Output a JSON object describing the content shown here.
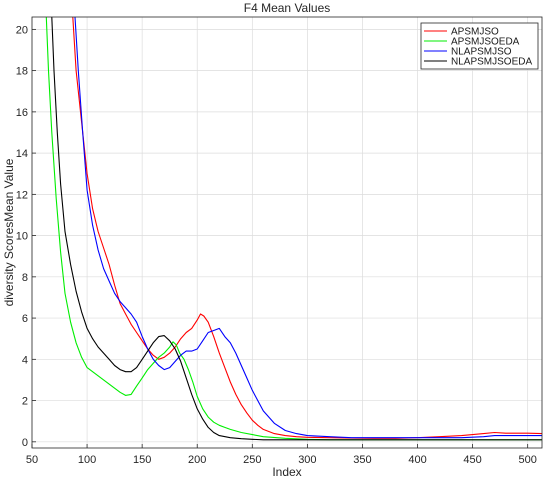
{
  "chart_data": {
    "type": "line",
    "title": "F4 Mean Values",
    "xlabel": "Index",
    "ylabel": "diversity ScoresMean Value",
    "xlim": [
      50,
      513
    ],
    "ylim": [
      -0.3,
      20.6
    ],
    "xticks": [
      50,
      100,
      150,
      200,
      250,
      300,
      350,
      400,
      450,
      500
    ],
    "yticks": [
      0,
      2,
      4,
      6,
      8,
      10,
      12,
      14,
      16,
      18,
      20
    ],
    "grid": true,
    "legend_position": "top-right",
    "series": [
      {
        "name": "APSMJSO",
        "color": "#ff0000",
        "x": [
          87,
          90,
          95,
          100,
          105,
          110,
          115,
          120,
          125,
          130,
          135,
          140,
          145,
          150,
          155,
          160,
          165,
          170,
          175,
          180,
          185,
          190,
          195,
          200,
          203,
          206,
          210,
          215,
          220,
          225,
          230,
          235,
          240,
          245,
          250,
          255,
          260,
          270,
          280,
          290,
          300,
          320,
          340,
          360,
          380,
          400,
          420,
          440,
          460,
          470,
          480,
          490,
          500,
          513
        ],
        "y": [
          20.6,
          18.0,
          15.5,
          13.0,
          11.3,
          10.2,
          9.4,
          8.6,
          7.6,
          6.7,
          6.2,
          5.7,
          5.3,
          4.9,
          4.5,
          4.2,
          4.0,
          4.1,
          4.3,
          4.6,
          5.0,
          5.3,
          5.5,
          5.9,
          6.2,
          6.1,
          5.8,
          5.1,
          4.3,
          3.6,
          2.9,
          2.3,
          1.8,
          1.4,
          1.05,
          0.8,
          0.6,
          0.4,
          0.3,
          0.25,
          0.22,
          0.2,
          0.18,
          0.17,
          0.17,
          0.2,
          0.25,
          0.3,
          0.4,
          0.45,
          0.42,
          0.42,
          0.42,
          0.4
        ]
      },
      {
        "name": "APSMJSOEDA",
        "color": "#00ee00",
        "x": [
          63,
          65,
          68,
          72,
          76,
          80,
          85,
          90,
          95,
          100,
          105,
          110,
          115,
          120,
          125,
          130,
          135,
          140,
          145,
          150,
          155,
          160,
          165,
          170,
          175,
          178,
          181,
          184,
          188,
          192,
          196,
          200,
          205,
          210,
          215,
          220,
          225,
          230,
          240,
          250,
          260,
          280,
          300,
          320,
          340,
          360,
          380,
          400,
          420,
          440,
          460,
          480,
          500,
          513
        ],
        "y": [
          20.6,
          18.0,
          15.0,
          11.8,
          9.2,
          7.2,
          5.8,
          4.8,
          4.1,
          3.6,
          3.4,
          3.2,
          3.0,
          2.8,
          2.6,
          2.4,
          2.25,
          2.3,
          2.7,
          3.1,
          3.5,
          3.8,
          4.1,
          4.3,
          4.6,
          4.85,
          4.7,
          4.3,
          4.0,
          3.5,
          2.9,
          2.2,
          1.6,
          1.2,
          0.95,
          0.8,
          0.7,
          0.6,
          0.45,
          0.35,
          0.25,
          0.17,
          0.12,
          0.1,
          0.1,
          0.1,
          0.1,
          0.1,
          0.1,
          0.1,
          0.1,
          0.1,
          0.1,
          0.1
        ]
      },
      {
        "name": "NLAPSMJSO",
        "color": "#0000ff",
        "x": [
          89,
          92,
          96,
          100,
          105,
          110,
          115,
          120,
          125,
          130,
          135,
          140,
          145,
          150,
          155,
          160,
          165,
          170,
          175,
          180,
          185,
          190,
          195,
          200,
          205,
          210,
          215,
          220,
          225,
          230,
          235,
          240,
          245,
          250,
          255,
          260,
          270,
          280,
          290,
          300,
          320,
          340,
          360,
          380,
          400,
          420,
          440,
          460,
          470,
          480,
          500,
          513
        ],
        "y": [
          20.6,
          18.0,
          15.0,
          12.2,
          10.5,
          9.3,
          8.4,
          7.8,
          7.2,
          6.8,
          6.5,
          6.2,
          5.8,
          5.1,
          4.5,
          4.0,
          3.7,
          3.5,
          3.6,
          3.9,
          4.2,
          4.4,
          4.4,
          4.5,
          4.9,
          5.3,
          5.4,
          5.5,
          5.1,
          4.8,
          4.3,
          3.7,
          3.1,
          2.5,
          2.0,
          1.5,
          0.9,
          0.55,
          0.4,
          0.3,
          0.25,
          0.2,
          0.2,
          0.2,
          0.2,
          0.2,
          0.2,
          0.25,
          0.3,
          0.3,
          0.3,
          0.3
        ]
      },
      {
        "name": "NLAPSMJSOEDA",
        "color": "#000000",
        "x": [
          68,
          70,
          73,
          76,
          80,
          85,
          90,
          95,
          100,
          105,
          110,
          115,
          120,
          125,
          130,
          135,
          140,
          145,
          150,
          155,
          160,
          165,
          170,
          175,
          180,
          185,
          190,
          195,
          200,
          205,
          210,
          215,
          220,
          230,
          240,
          250,
          260,
          280,
          300,
          320,
          340,
          360,
          380,
          400,
          420,
          440,
          460,
          480,
          500,
          513
        ],
        "y": [
          20.6,
          18.0,
          15.0,
          12.5,
          10.2,
          8.6,
          7.3,
          6.3,
          5.5,
          5.0,
          4.6,
          4.3,
          4.0,
          3.7,
          3.5,
          3.4,
          3.4,
          3.6,
          4.0,
          4.4,
          4.8,
          5.1,
          5.15,
          4.9,
          4.5,
          3.9,
          3.1,
          2.3,
          1.6,
          1.1,
          0.7,
          0.45,
          0.3,
          0.2,
          0.15,
          0.12,
          0.1,
          0.1,
          0.1,
          0.1,
          0.1,
          0.1,
          0.1,
          0.1,
          0.1,
          0.1,
          0.1,
          0.1,
          0.1,
          0.1
        ]
      }
    ]
  }
}
